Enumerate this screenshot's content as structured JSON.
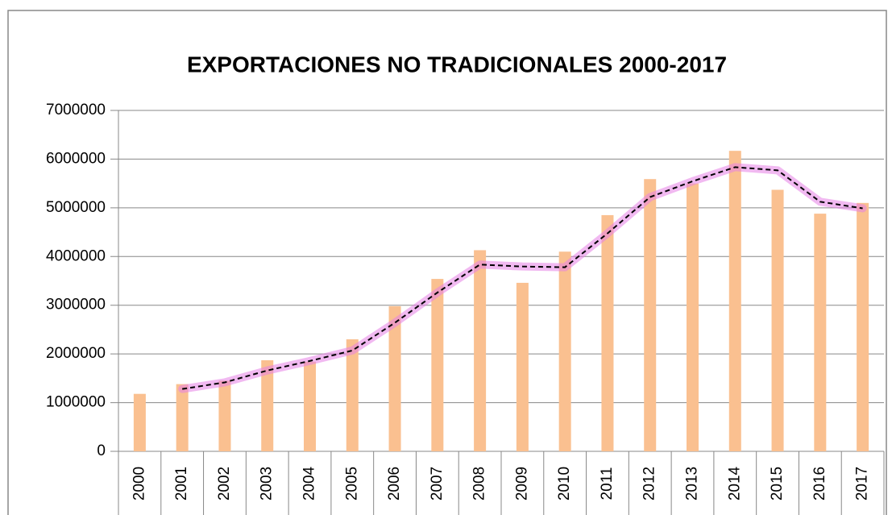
{
  "chart_data": {
    "type": "bar",
    "title": "EXPORTACIONES NO TRADICIONALES 2000-2017",
    "categories": [
      "2000",
      "2001",
      "2002",
      "2003",
      "2004",
      "2005",
      "2006",
      "2007",
      "2008",
      "2009",
      "2010",
      "2011",
      "2012",
      "2013",
      "2014",
      "2015",
      "2016",
      "2017"
    ],
    "series": [
      {
        "color": "#fac090",
        "values": [
          1180000,
          1380000,
          1450000,
          1870000,
          1840000,
          2300000,
          2980000,
          3540000,
          4130000,
          3460000,
          4100000,
          4850000,
          5590000,
          5500000,
          6170000,
          5370000,
          4880000,
          5100000
        ]
      },
      {
        "type": "line",
        "color": "#000000",
        "glow": "#e680e6",
        "values": [
          null,
          1280000,
          1415000,
          1660000,
          1855000,
          2070000,
          2640000,
          3260000,
          3835000,
          3795000,
          3780000,
          4475000,
          5220000,
          5545000,
          5835000,
          5770000,
          5125000,
          4990000
        ]
      }
    ],
    "ylim": [
      0,
      7000000
    ],
    "yticks": [
      0,
      1000000,
      2000000,
      3000000,
      4000000,
      5000000,
      6000000,
      7000000
    ],
    "grid": true
  }
}
